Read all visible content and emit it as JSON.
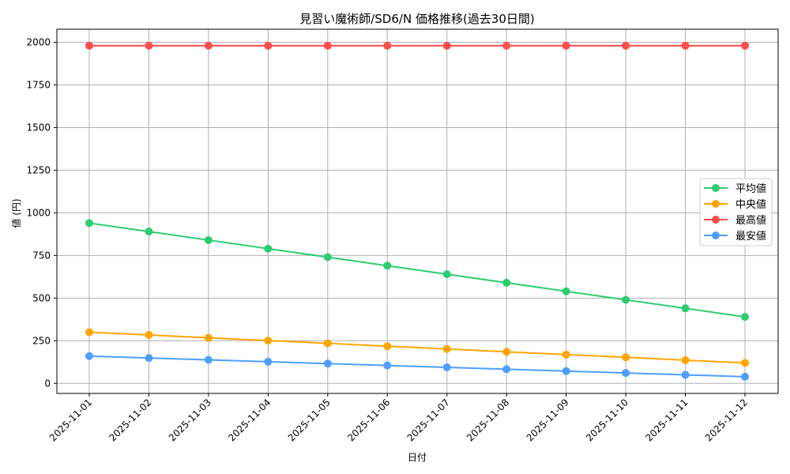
{
  "chart_data": {
    "type": "line",
    "title": "見習い魔術師/SD6/N 価格推移(過去30日間)",
    "xlabel": "日付",
    "ylabel": "値 (円)",
    "ylim": [
      -60,
      2075
    ],
    "yticks": [
      0,
      250,
      500,
      750,
      1000,
      1250,
      1500,
      1750,
      2000
    ],
    "grid": true,
    "legend_position": "center right",
    "categories": [
      "2025-11-01",
      "2025-11-02",
      "2025-11-03",
      "2025-11-04",
      "2025-11-05",
      "2025-11-06",
      "2025-11-07",
      "2025-11-08",
      "2025-11-09",
      "2025-11-10",
      "2025-11-11",
      "2025-11-12"
    ],
    "series": [
      {
        "name": "平均値",
        "color": "#2ecc71",
        "values": [
          940,
          890,
          840,
          790,
          740,
          690,
          640,
          590,
          540,
          490,
          440,
          390
        ]
      },
      {
        "name": "中央値",
        "color": "#ffa500",
        "values": [
          300,
          284,
          267,
          251,
          235,
          218,
          202,
          185,
          169,
          153,
          136,
          120
        ]
      },
      {
        "name": "最高値",
        "color": "#ff4d4d",
        "values": [
          1980,
          1980,
          1980,
          1980,
          1980,
          1980,
          1980,
          1980,
          1980,
          1980,
          1980,
          1980
        ]
      },
      {
        "name": "最安値",
        "color": "#4d9fff",
        "values": [
          160,
          149,
          138,
          127,
          116,
          105,
          94,
          83,
          72,
          61,
          50,
          39
        ]
      }
    ]
  }
}
